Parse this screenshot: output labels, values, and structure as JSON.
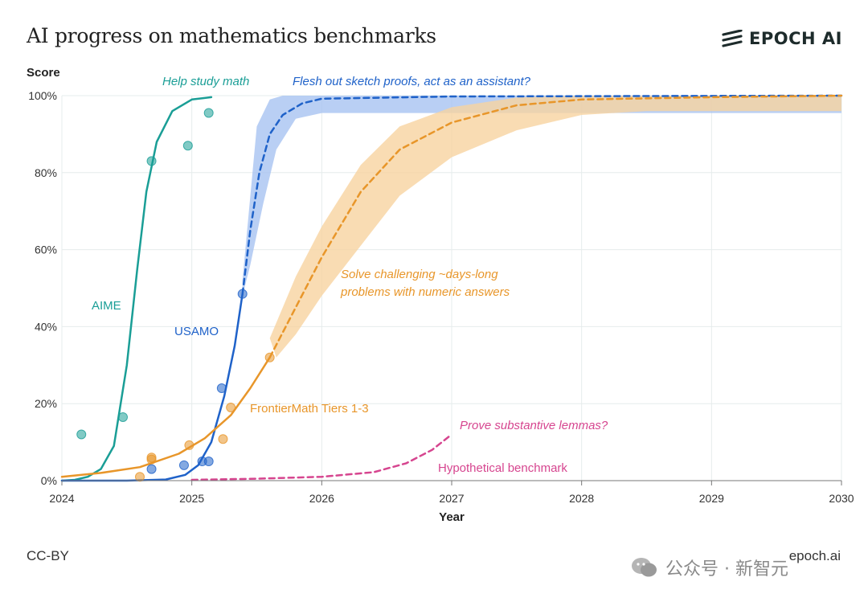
{
  "header": {
    "title": "AI progress on mathematics benchmarks",
    "brand": "EPOCH AI"
  },
  "footer": {
    "license": "CC-BY",
    "site": "epoch.ai",
    "watermark": "公众号 · 新智元"
  },
  "colors": {
    "aime": "#1a9e96",
    "usamo": "#1f62c9",
    "frontiermath": "#e8962a",
    "hypothetical": "#d6458f",
    "band_blue": "#a7c3f1",
    "band_orange": "#f7d3a0",
    "grid": "#e6ecec"
  },
  "chart_data": {
    "type": "line",
    "title": "AI progress on mathematics benchmarks",
    "xlabel": "Year",
    "ylabel": "Score",
    "xlim": [
      2024,
      2030
    ],
    "ylim": [
      0,
      100
    ],
    "x_ticks": [
      "2024",
      "2025",
      "2026",
      "2027",
      "2028",
      "2029",
      "2030"
    ],
    "y_ticks": [
      "0%",
      "20%",
      "40%",
      "60%",
      "80%",
      "100%"
    ],
    "grid": true,
    "series": [
      {
        "name": "AIME",
        "color": "#1a9e96",
        "points": [
          [
            2024.15,
            12
          ],
          [
            2024.47,
            16.5
          ],
          [
            2024.69,
            83
          ],
          [
            2024.97,
            87
          ],
          [
            2025.13,
            95.5
          ]
        ],
        "fit": [
          [
            2024.0,
            0
          ],
          [
            2024.1,
            0.2
          ],
          [
            2024.2,
            1
          ],
          [
            2024.3,
            3
          ],
          [
            2024.4,
            9
          ],
          [
            2024.5,
            30
          ],
          [
            2024.58,
            55
          ],
          [
            2024.65,
            75
          ],
          [
            2024.73,
            88
          ],
          [
            2024.85,
            96
          ],
          [
            2025.0,
            99
          ],
          [
            2025.15,
            99.6
          ]
        ]
      },
      {
        "name": "USAMO",
        "color": "#1f62c9",
        "points": [
          [
            2024.69,
            3
          ],
          [
            2024.94,
            4
          ],
          [
            2025.08,
            5
          ],
          [
            2025.13,
            5
          ],
          [
            2025.23,
            24
          ],
          [
            2025.39,
            48.5
          ]
        ],
        "fit": [
          [
            2024.0,
            0
          ],
          [
            2024.5,
            0
          ],
          [
            2024.8,
            0.3
          ],
          [
            2024.95,
            1.5
          ],
          [
            2025.05,
            4
          ],
          [
            2025.15,
            10
          ],
          [
            2025.25,
            22
          ],
          [
            2025.33,
            35
          ],
          [
            2025.39,
            48.5
          ]
        ],
        "projection": [
          [
            2025.39,
            48.5
          ],
          [
            2025.45,
            65
          ],
          [
            2025.52,
            80
          ],
          [
            2025.6,
            90
          ],
          [
            2025.7,
            95
          ],
          [
            2025.85,
            98
          ],
          [
            2026.0,
            99.2
          ],
          [
            2027.0,
            99.8
          ],
          [
            2030.0,
            100
          ]
        ],
        "band_upper": [
          [
            2025.39,
            52
          ],
          [
            2025.5,
            92
          ],
          [
            2025.6,
            99
          ],
          [
            2025.7,
            100
          ],
          [
            2030.0,
            100
          ]
        ],
        "band_lower": [
          [
            2030.0,
            95.5
          ],
          [
            2026.0,
            95.5
          ],
          [
            2025.8,
            94
          ],
          [
            2025.65,
            86
          ],
          [
            2025.55,
            72
          ],
          [
            2025.45,
            56
          ],
          [
            2025.39,
            48
          ]
        ]
      },
      {
        "name": "FrontierMath Tiers 1-3",
        "color": "#e8962a",
        "points": [
          [
            2024.6,
            1
          ],
          [
            2024.69,
            5.5
          ],
          [
            2024.69,
            6
          ],
          [
            2024.98,
            9.2
          ],
          [
            2025.24,
            10.8
          ],
          [
            2025.3,
            19
          ],
          [
            2025.6,
            32
          ]
        ],
        "fit": [
          [
            2024.0,
            1
          ],
          [
            2024.3,
            2
          ],
          [
            2024.6,
            3.5
          ],
          [
            2024.9,
            7
          ],
          [
            2025.1,
            11
          ],
          [
            2025.3,
            17
          ],
          [
            2025.45,
            24
          ],
          [
            2025.6,
            32
          ]
        ],
        "projection": [
          [
            2025.6,
            32
          ],
          [
            2025.8,
            45
          ],
          [
            2026.0,
            58
          ],
          [
            2026.3,
            75
          ],
          [
            2026.6,
            86
          ],
          [
            2027.0,
            93
          ],
          [
            2027.5,
            97.5
          ],
          [
            2028.0,
            99
          ],
          [
            2029.0,
            99.6
          ],
          [
            2030.0,
            100
          ]
        ],
        "band_upper": [
          [
            2025.6,
            37
          ],
          [
            2025.8,
            53
          ],
          [
            2026.0,
            66
          ],
          [
            2026.3,
            82
          ],
          [
            2026.6,
            92
          ],
          [
            2027.0,
            97
          ],
          [
            2027.5,
            99.5
          ],
          [
            2028.0,
            100
          ],
          [
            2030.0,
            100
          ]
        ],
        "band_lower": [
          [
            2030.0,
            96
          ],
          [
            2028.5,
            96
          ],
          [
            2028.0,
            95
          ],
          [
            2027.5,
            91
          ],
          [
            2027.0,
            84
          ],
          [
            2026.6,
            74
          ],
          [
            2026.3,
            61
          ],
          [
            2026.0,
            48
          ],
          [
            2025.8,
            38
          ],
          [
            2025.65,
            32
          ]
        ]
      },
      {
        "name": "Hypothetical benchmark",
        "color": "#d6458f",
        "projection": [
          [
            2025.0,
            0.2
          ],
          [
            2025.5,
            0.5
          ],
          [
            2026.0,
            1
          ],
          [
            2026.4,
            2.2
          ],
          [
            2026.65,
            4.5
          ],
          [
            2026.85,
            8
          ],
          [
            2027.0,
            12
          ]
        ]
      }
    ],
    "annotations": [
      {
        "text": "Help study math",
        "color": "#1a9e96",
        "italic": true
      },
      {
        "text": "Flesh out sketch proofs, act as an assistant?",
        "color": "#1f62c9",
        "italic": true
      },
      {
        "text": "Solve challenging ~days-long",
        "color": "#e8962a",
        "italic": true
      },
      {
        "text": "problems with numeric answers",
        "color": "#e8962a",
        "italic": true
      },
      {
        "text": "Prove substantive lemmas?",
        "color": "#d6458f",
        "italic": true
      },
      {
        "text": "AIME",
        "color": "#1a9e96",
        "italic": false
      },
      {
        "text": "USAMO",
        "color": "#1f62c9",
        "italic": false
      },
      {
        "text": "FrontierMath Tiers 1-3",
        "color": "#e8962a",
        "italic": false
      },
      {
        "text": "Hypothetical benchmark",
        "color": "#d6458f",
        "italic": false
      }
    ]
  }
}
